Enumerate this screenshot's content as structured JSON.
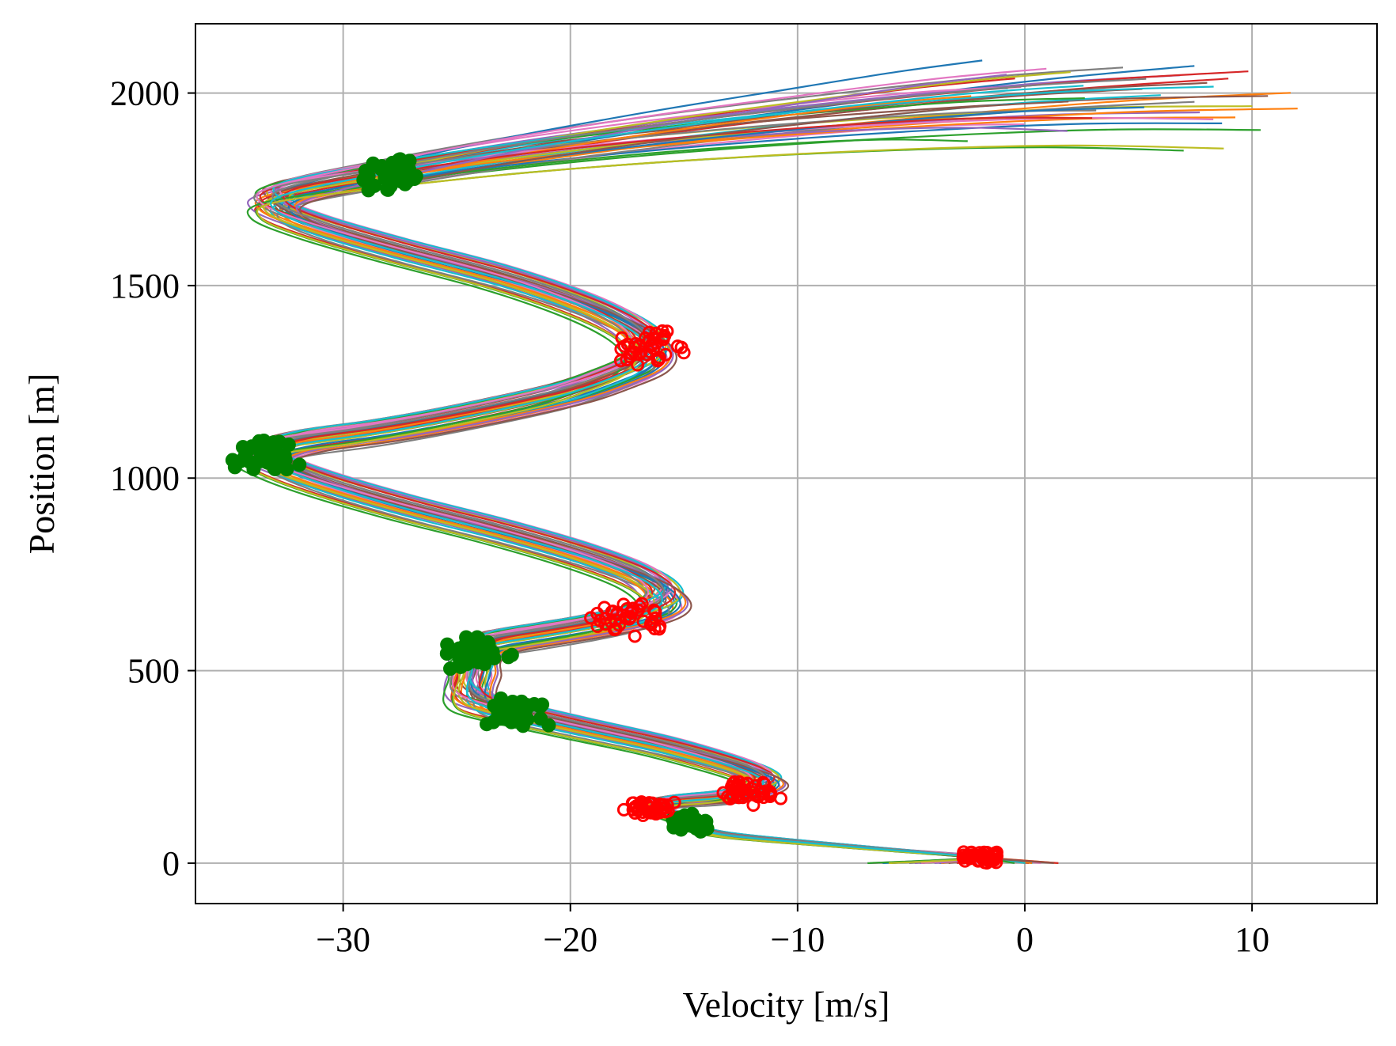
{
  "chart_data": {
    "type": "line",
    "title": "",
    "xlabel": "Velocity [m/s]",
    "ylabel": "Position [m]",
    "xlim": [
      -36.5,
      15.5
    ],
    "ylim": [
      -105,
      2180
    ],
    "xticks": [
      -30,
      -20,
      -10,
      0,
      10
    ],
    "xtick_labels": [
      "−30",
      "−20",
      "−10",
      "0",
      "10"
    ],
    "yticks": [
      0,
      500,
      1000,
      1500,
      2000
    ],
    "ytick_labels": [
      "0",
      "500",
      "1000",
      "1500",
      "2000"
    ],
    "grid": true,
    "legend": "none",
    "colors": {
      "grid": "#b0b0b0",
      "start_marker": "#008000",
      "end_marker": "#ff0000",
      "palette": [
        "#1f77b4",
        "#ff7f0e",
        "#2ca02c",
        "#d62728",
        "#9467bd",
        "#8c564b",
        "#e377c2",
        "#7f7f7f",
        "#bcbd22",
        "#17becf"
      ]
    },
    "series_note_count": 40,
    "base_trajectory": [
      [
        1.5,
        0
      ],
      [
        -2,
        15
      ],
      [
        -6,
        35
      ],
      [
        -10,
        55
      ],
      [
        -13,
        72
      ],
      [
        -14.5,
        90
      ],
      [
        -14.8,
        105
      ],
      [
        -15.5,
        125
      ],
      [
        -16.5,
        145
      ],
      [
        -15.5,
        160
      ],
      [
        -13.5,
        170
      ],
      [
        -12.2,
        185
      ],
      [
        -11.5,
        210
      ],
      [
        -12,
        235
      ],
      [
        -13.5,
        265
      ],
      [
        -16,
        305
      ],
      [
        -19.5,
        350
      ],
      [
        -22.5,
        390
      ],
      [
        -24,
        415
      ],
      [
        -24.5,
        440
      ],
      [
        -24.5,
        470
      ],
      [
        -24.3,
        505
      ],
      [
        -24.3,
        545
      ],
      [
        -23.5,
        570
      ],
      [
        -21.5,
        590
      ],
      [
        -19.5,
        610
      ],
      [
        -17.5,
        635
      ],
      [
        -16.2,
        665
      ],
      [
        -16,
        700
      ],
      [
        -17,
        745
      ],
      [
        -19.5,
        800
      ],
      [
        -23,
        860
      ],
      [
        -27,
        920
      ],
      [
        -30.5,
        980
      ],
      [
        -32.8,
        1030
      ],
      [
        -33.5,
        1060
      ],
      [
        -32,
        1090
      ],
      [
        -29,
        1115
      ],
      [
        -26.5,
        1140
      ],
      [
        -23.5,
        1175
      ],
      [
        -20.5,
        1215
      ],
      [
        -18.5,
        1255
      ],
      [
        -17,
        1295
      ],
      [
        -16.6,
        1340
      ],
      [
        -17.4,
        1390
      ],
      [
        -19.5,
        1450
      ],
      [
        -23,
        1520
      ],
      [
        -27.5,
        1590
      ],
      [
        -31,
        1650
      ],
      [
        -33,
        1700
      ],
      [
        -32.5,
        1740
      ],
      [
        -28,
        1790
      ],
      [
        -22,
        1845
      ],
      [
        -15,
        1895
      ],
      [
        -8,
        1935
      ],
      [
        -2,
        1962
      ],
      [
        3,
        1972
      ]
    ],
    "end_velocity_range": [
      -3.5,
      13.2
    ],
    "end_position_range": [
      1875,
      2085
    ],
    "start_markers_range": {
      "velocity": [
        -34,
        -16
      ],
      "position": [
        60,
        1800
      ]
    },
    "end_markers_range": {
      "velocity": [
        -22,
        1.8
      ],
      "position": [
        0,
        1330
      ]
    }
  }
}
